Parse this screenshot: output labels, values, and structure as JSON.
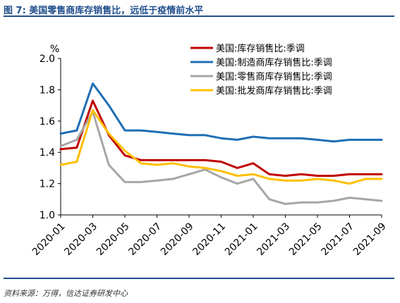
{
  "header": {
    "title": "图 7: 美国零售商库存销售比，远低于疫情前水平"
  },
  "footer": {
    "source": "资料来源：万得，信达证券研发中心"
  },
  "chart_data": {
    "type": "line",
    "ylabel": "%",
    "ylim": [
      1.0,
      2.0
    ],
    "yticks": [
      "1.0",
      "1.2",
      "1.4",
      "1.6",
      "1.8",
      "2.0"
    ],
    "x": [
      "2020-01",
      "2020-02",
      "2020-03",
      "2020-04",
      "2020-05",
      "2020-06",
      "2020-07",
      "2020-08",
      "2020-09",
      "2020-10",
      "2020-11",
      "2020-12",
      "2021-01",
      "2021-02",
      "2021-03",
      "2021-04",
      "2021-05",
      "2021-06",
      "2021-07",
      "2021-08",
      "2021-09"
    ],
    "xticks": [
      "2020-01",
      "2020-03",
      "2020-05",
      "2020-07",
      "2020-09",
      "2020-11",
      "2021-01",
      "2021-03",
      "2021-05",
      "2021-07",
      "2021-09"
    ],
    "legend_position": "top-right",
    "grid": false,
    "series": [
      {
        "name": "美国:库存销售比:季调",
        "color": "#c00000",
        "values": [
          1.42,
          1.43,
          1.73,
          1.51,
          1.38,
          1.35,
          1.35,
          1.35,
          1.35,
          1.35,
          1.34,
          1.3,
          1.33,
          1.26,
          1.25,
          1.26,
          1.25,
          1.25,
          1.26,
          1.26,
          1.26
        ]
      },
      {
        "name": "美国:制造商库存销售比:季调",
        "color": "#1f6eb4",
        "values": [
          1.52,
          1.54,
          1.84,
          1.7,
          1.54,
          1.54,
          1.53,
          1.52,
          1.51,
          1.51,
          1.49,
          1.48,
          1.5,
          1.49,
          1.49,
          1.49,
          1.48,
          1.47,
          1.48,
          1.48,
          1.48
        ]
      },
      {
        "name": "美国:零售商库存销售比:季调",
        "color": "#a6a6a6",
        "values": [
          1.44,
          1.48,
          1.66,
          1.32,
          1.21,
          1.21,
          1.22,
          1.23,
          1.26,
          1.29,
          1.24,
          1.2,
          1.23,
          1.1,
          1.07,
          1.08,
          1.08,
          1.09,
          1.11,
          1.1,
          1.09
        ]
      },
      {
        "name": "美国:批发商库存销售比:季调",
        "color": "#ffc000",
        "values": [
          1.32,
          1.34,
          1.67,
          1.52,
          1.41,
          1.33,
          1.32,
          1.33,
          1.31,
          1.3,
          1.28,
          1.25,
          1.26,
          1.23,
          1.22,
          1.22,
          1.23,
          1.22,
          1.2,
          1.23,
          1.23
        ]
      }
    ]
  }
}
